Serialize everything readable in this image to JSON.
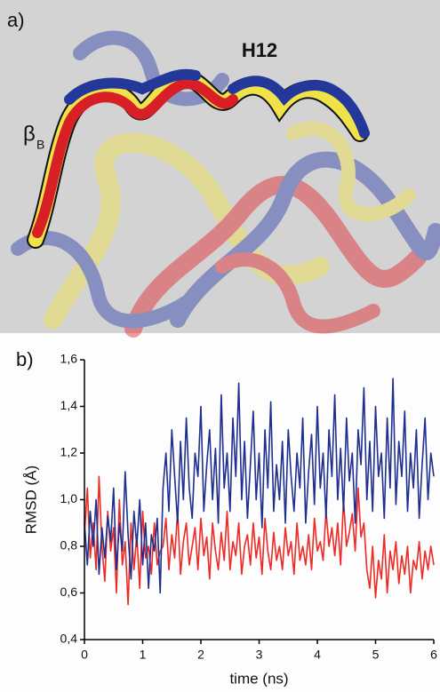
{
  "panel_a": {
    "label": "a)",
    "helix_label": "H12",
    "strand_label": "β",
    "strand_subscript": "B"
  },
  "chart_data": {
    "type": "line",
    "panel_label": "b)",
    "x_label": "time (ns)",
    "y_label": "RMSD (Å)",
    "xlim": [
      0,
      6
    ],
    "xticks": [
      0,
      1,
      2,
      3,
      4,
      5,
      6
    ],
    "ylim": [
      0.4,
      1.6
    ],
    "yticks": [
      {
        "value": 0.4,
        "label": "0,4"
      },
      {
        "value": 0.6,
        "label": "0,6"
      },
      {
        "value": 0.8,
        "label": "0,8"
      },
      {
        "value": 1.0,
        "label": "1,0"
      },
      {
        "value": 1.2,
        "label": "1,2"
      },
      {
        "value": 1.4,
        "label": "1,4"
      },
      {
        "value": 1.6,
        "label": "1,6"
      }
    ],
    "x": [
      0,
      0.05,
      0.1,
      0.15,
      0.2,
      0.25,
      0.3,
      0.35,
      0.4,
      0.45,
      0.5,
      0.55,
      0.6,
      0.65,
      0.7,
      0.75,
      0.8,
      0.85,
      0.9,
      0.95,
      1,
      1.05,
      1.1,
      1.15,
      1.2,
      1.25,
      1.3,
      1.35,
      1.4,
      1.45,
      1.5,
      1.55,
      1.6,
      1.65,
      1.7,
      1.75,
      1.8,
      1.85,
      1.9,
      1.95,
      2,
      2.05,
      2.1,
      2.15,
      2.2,
      2.25,
      2.3,
      2.35,
      2.4,
      2.45,
      2.5,
      2.55,
      2.6,
      2.65,
      2.7,
      2.75,
      2.8,
      2.85,
      2.9,
      2.95,
      3,
      3.05,
      3.1,
      3.15,
      3.2,
      3.25,
      3.3,
      3.35,
      3.4,
      3.45,
      3.5,
      3.55,
      3.6,
      3.65,
      3.7,
      3.75,
      3.8,
      3.85,
      3.9,
      3.95,
      4,
      4.05,
      4.1,
      4.15,
      4.2,
      4.25,
      4.3,
      4.35,
      4.4,
      4.45,
      4.5,
      4.55,
      4.6,
      4.65,
      4.7,
      4.75,
      4.8,
      4.85,
      4.9,
      4.95,
      5,
      5.05,
      5.1,
      5.15,
      5.2,
      5.25,
      5.3,
      5.35,
      5.4,
      5.45,
      5.5,
      5.55,
      5.6,
      5.65,
      5.7,
      5.75,
      5.8,
      5.85,
      5.9,
      5.95,
      6
    ],
    "series": [
      {
        "color": "#ee2a24",
        "values": [
          0.85,
          1.05,
          0.75,
          0.9,
          0.7,
          1.1,
          0.8,
          0.65,
          0.95,
          0.78,
          0.88,
          0.6,
          1.0,
          0.72,
          0.82,
          0.55,
          0.9,
          0.7,
          0.85,
          0.62,
          0.95,
          0.75,
          0.8,
          0.68,
          0.9,
          0.72,
          0.78,
          0.8,
          0.92,
          0.7,
          0.85,
          0.75,
          0.95,
          0.68,
          0.82,
          0.9,
          0.72,
          0.8,
          0.88,
          0.7,
          0.92,
          0.76,
          0.84,
          0.66,
          0.9,
          0.78,
          0.7,
          0.86,
          0.74,
          0.95,
          0.7,
          0.82,
          0.76,
          0.9,
          0.68,
          0.8,
          0.85,
          0.72,
          0.9,
          0.75,
          0.84,
          0.68,
          0.92,
          0.78,
          0.7,
          0.86,
          0.74,
          0.8,
          0.7,
          0.88,
          0.76,
          0.82,
          0.68,
          0.9,
          0.74,
          0.8,
          0.72,
          0.85,
          0.7,
          0.92,
          0.78,
          0.82,
          0.74,
          0.95,
          0.8,
          0.88,
          0.76,
          0.9,
          0.72,
          1.0,
          0.8,
          0.86,
          0.94,
          0.78,
          1.05,
          0.84,
          0.9,
          0.7,
          0.62,
          0.8,
          0.58,
          0.74,
          0.66,
          0.85,
          0.6,
          0.78,
          0.7,
          0.82,
          0.64,
          0.76,
          0.68,
          0.8,
          0.6,
          0.74,
          0.7,
          0.82,
          0.66,
          0.78,
          0.7,
          0.8,
          0.72
        ]
      },
      {
        "color": "#1f2f8f",
        "values": [
          0.9,
          0.72,
          0.95,
          0.8,
          1.0,
          0.68,
          0.88,
          0.75,
          0.93,
          0.82,
          1.05,
          0.7,
          0.9,
          0.78,
          1.12,
          0.85,
          0.66,
          0.95,
          0.8,
          1.0,
          0.72,
          0.9,
          0.62,
          0.85,
          0.78,
          0.92,
          0.6,
          1.05,
          1.2,
          0.95,
          1.3,
          1.1,
          0.9,
          1.25,
          1.0,
          1.35,
          1.05,
          0.92,
          1.2,
          1.1,
          1.4,
          0.95,
          1.15,
          1.3,
          1.0,
          1.22,
          0.9,
          1.45,
          1.05,
          1.2,
          0.95,
          1.35,
          1.1,
          1.5,
          1.0,
          1.25,
          0.92,
          1.15,
          1.38,
          1.0,
          1.2,
          0.88,
          1.3,
          1.05,
          1.42,
          0.95,
          1.15,
          1.0,
          1.25,
          0.9,
          1.3,
          1.1,
          0.95,
          1.2,
          1.05,
          1.35,
          0.9,
          1.12,
          1.28,
          0.98,
          1.4,
          1.05,
          1.2,
          0.92,
          1.3,
          1.1,
          1.45,
          1.0,
          1.22,
          0.95,
          1.35,
          1.08,
          1.2,
          0.9,
          1.3,
          1.15,
          1.48,
          1.0,
          1.25,
          0.95,
          1.4,
          1.1,
          1.2,
          0.92,
          1.35,
          1.05,
          1.52,
          0.98,
          1.25,
          1.1,
          1.38,
          0.95,
          1.2,
          1.05,
          1.3,
          0.92,
          1.15,
          1.35,
          1.0,
          1.2,
          1.1
        ]
      }
    ]
  }
}
